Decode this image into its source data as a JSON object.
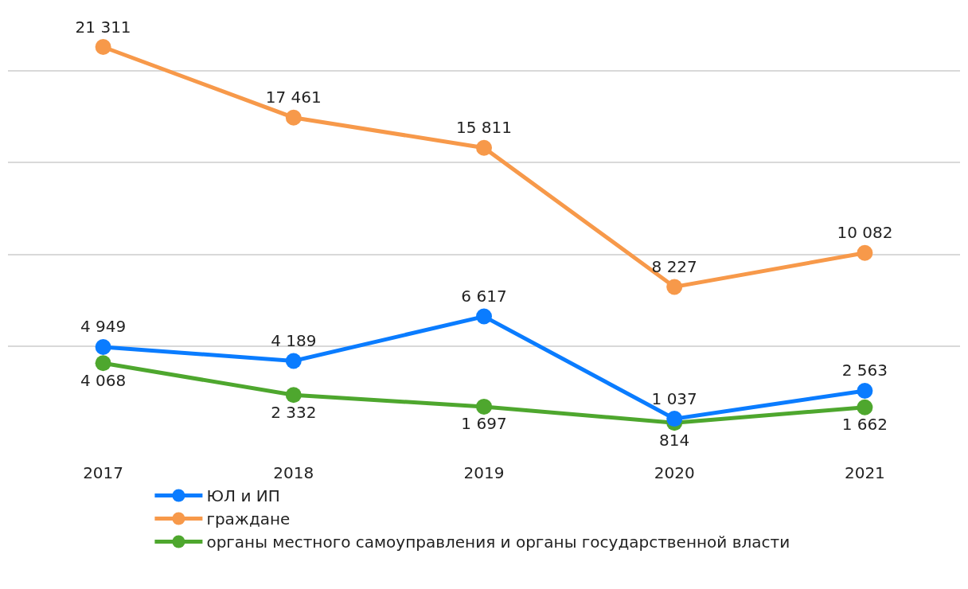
{
  "chart_data": {
    "type": "line",
    "categories": [
      "2017",
      "2018",
      "2019",
      "2020",
      "2021"
    ],
    "series": [
      {
        "name": "ЮЛ и ИП",
        "color": "#0a7cff",
        "values": [
          4949,
          4189,
          6617,
          1037,
          2563
        ]
      },
      {
        "name": "граждане",
        "color": "#f7994a",
        "values": [
          21311,
          17461,
          15811,
          8227,
          10082
        ]
      },
      {
        "name": "органы местного самоуправления и органы государственной власти",
        "color": "#4ea72e",
        "values": [
          4068,
          2332,
          1697,
          814,
          1662
        ]
      }
    ],
    "tick_labels": "x",
    "grid": "y",
    "legend": "bottom left",
    "marker": "circle",
    "line_style": "solid",
    "data_labels": true
  }
}
